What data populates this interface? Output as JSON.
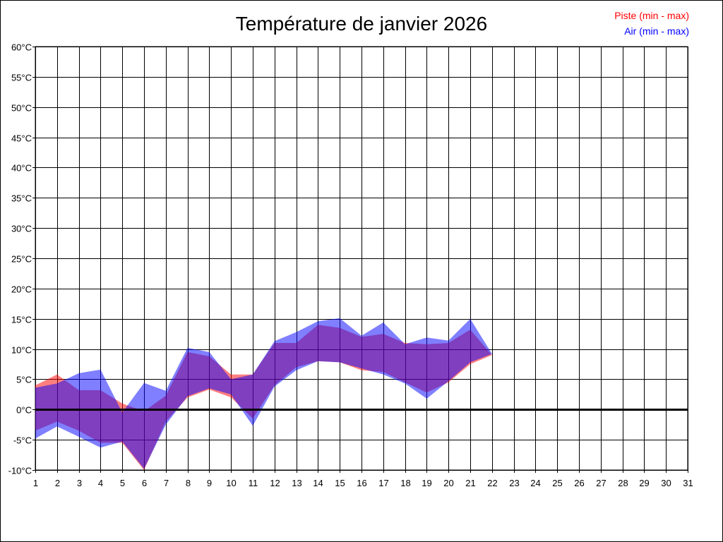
{
  "chart_data": {
    "type": "area",
    "title": "Température de janvier 2026",
    "xlabel": "",
    "ylabel": "",
    "ylim": [
      -10,
      60
    ],
    "xlim": [
      1,
      31
    ],
    "y_ticks": [
      -10,
      -5,
      0,
      5,
      10,
      15,
      20,
      25,
      30,
      35,
      40,
      45,
      50,
      55,
      60
    ],
    "y_tick_labels": [
      "-10°C",
      "-5°C",
      "0°C",
      "5°C",
      "10°C",
      "15°C",
      "20°C",
      "25°C",
      "30°C",
      "35°C",
      "40°C",
      "45°C",
      "50°C",
      "55°C",
      "60°C"
    ],
    "x_ticks": [
      1,
      2,
      3,
      4,
      5,
      6,
      7,
      8,
      9,
      10,
      11,
      12,
      13,
      14,
      15,
      16,
      17,
      18,
      19,
      20,
      21,
      22,
      23,
      24,
      25,
      26,
      27,
      28,
      29,
      30,
      31
    ],
    "x_tick_labels": [
      "1",
      "2",
      "3",
      "4",
      "5",
      "6",
      "7",
      "8",
      "9",
      "10",
      "11",
      "12",
      "13",
      "14",
      "15",
      "16",
      "17",
      "18",
      "19",
      "20",
      "21",
      "22",
      "23",
      "24",
      "25",
      "26",
      "27",
      "28",
      "29",
      "30",
      "31"
    ],
    "grid": true,
    "legend_position": "top-right",
    "x": [
      1,
      2,
      3,
      4,
      5,
      6,
      7,
      8,
      9,
      10,
      11,
      12,
      13,
      14,
      15,
      16,
      17,
      18,
      19,
      20,
      21,
      22
    ],
    "series": [
      {
        "name": "Piste (min - max)",
        "color": "#ff0000",
        "fill": "rgba(255,0,0,0.5)",
        "min": [
          -3.5,
          -2.0,
          -3.5,
          -5.5,
          -5.5,
          -10.0,
          -2.0,
          2.0,
          3.3,
          2.0,
          -1.5,
          4.0,
          7.0,
          8.0,
          7.8,
          6.5,
          6.2,
          4.5,
          2.8,
          4.5,
          7.5,
          9.0
        ],
        "max": [
          4.0,
          5.8,
          3.2,
          3.2,
          1.0,
          -0.3,
          2.3,
          9.5,
          8.8,
          5.8,
          5.8,
          11.0,
          11.0,
          14.0,
          13.5,
          12.0,
          12.5,
          11.0,
          10.8,
          11.0,
          13.2,
          9.0
        ]
      },
      {
        "name": "Air (min - max)",
        "color": "#0000ff",
        "fill": "rgba(0,0,255,0.5)",
        "min": [
          -4.8,
          -2.8,
          -4.5,
          -6.3,
          -5.3,
          -9.8,
          -2.5,
          2.2,
          3.5,
          2.5,
          -2.7,
          3.8,
          6.5,
          8.0,
          7.8,
          6.8,
          5.8,
          4.3,
          1.8,
          4.7,
          7.8,
          9.2
        ],
        "max": [
          3.6,
          4.3,
          6.0,
          6.6,
          -0.5,
          4.4,
          3.1,
          10.2,
          9.5,
          5.0,
          5.8,
          11.3,
          12.8,
          14.6,
          15.1,
          12.2,
          14.4,
          10.8,
          11.9,
          11.4,
          15.0,
          9.2
        ]
      }
    ]
  },
  "legend": {
    "piste_label": "Piste (min - max)",
    "air_label": "Air (min - max)",
    "piste_color": "#ff0000",
    "air_color": "#0000ff"
  }
}
